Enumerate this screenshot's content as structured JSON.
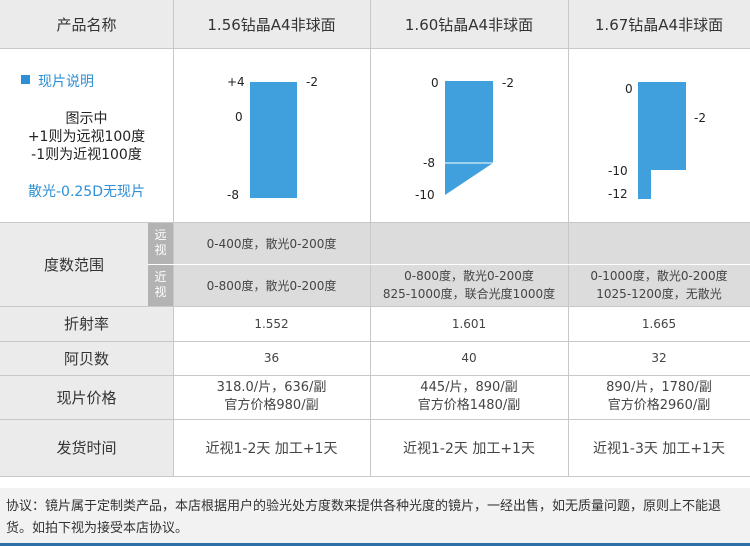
{
  "header": {
    "product_label": "产品名称",
    "products": [
      "1.56钻晶A4非球面",
      "1.60钻晶A4非球面",
      "1.67钻晶A4非球面"
    ]
  },
  "legend": {
    "title": "现片说明",
    "line1": "图示中",
    "line2": "+1则为远视100度",
    "line3": "-1则为近视100度",
    "note": "散光-0.25D无现片"
  },
  "diagrams": [
    {
      "labels": [
        "+4",
        "0",
        "-8",
        "-2"
      ]
    },
    {
      "labels": [
        "0",
        "-8",
        "-10",
        "-2"
      ]
    },
    {
      "labels": [
        "0",
        "-10",
        "-12",
        "-2"
      ]
    }
  ],
  "rows": {
    "power_range": {
      "label": "度数范围",
      "far_label": "远视",
      "near_label": "近视",
      "far": [
        "0-400度，散光0-200度",
        "",
        ""
      ],
      "near": [
        [
          "0-800度，散光0-200度"
        ],
        [
          "0-800度，散光0-200度",
          "825-1000度，联合光度1000度"
        ],
        [
          "0-1000度，散光0-200度",
          "1025-1200度，无散光"
        ]
      ]
    },
    "refractive_index": {
      "label": "折射率",
      "values": [
        "1.552",
        "1.601",
        "1.665"
      ]
    },
    "abbe": {
      "label": "阿贝数",
      "values": [
        "36",
        "40",
        "32"
      ]
    },
    "price": {
      "label": "现片价格",
      "values": [
        [
          "318.0/片，636/副",
          "官方价格980/副"
        ],
        [
          "445/片，890/副",
          "官方价格1480/副"
        ],
        [
          "890/片，1780/副",
          "官方价格2960/副"
        ]
      ]
    },
    "shipping": {
      "label": "发货时间",
      "values": [
        "近视1-2天 加工+1天",
        "近视1-2天 加工+1天",
        "近视1-3天 加工+1天"
      ]
    }
  },
  "footer": {
    "agreement": "协议：镜片属于定制类产品，本店根据用户的验光处方度数来提供各种光度的镜片，一经出售，如无质量问题，原则上不能退货。如拍下视为接受本店协议。"
  },
  "colors": {
    "bar": "#3fa0dd",
    "legend_blue": "#2d8fd6"
  }
}
